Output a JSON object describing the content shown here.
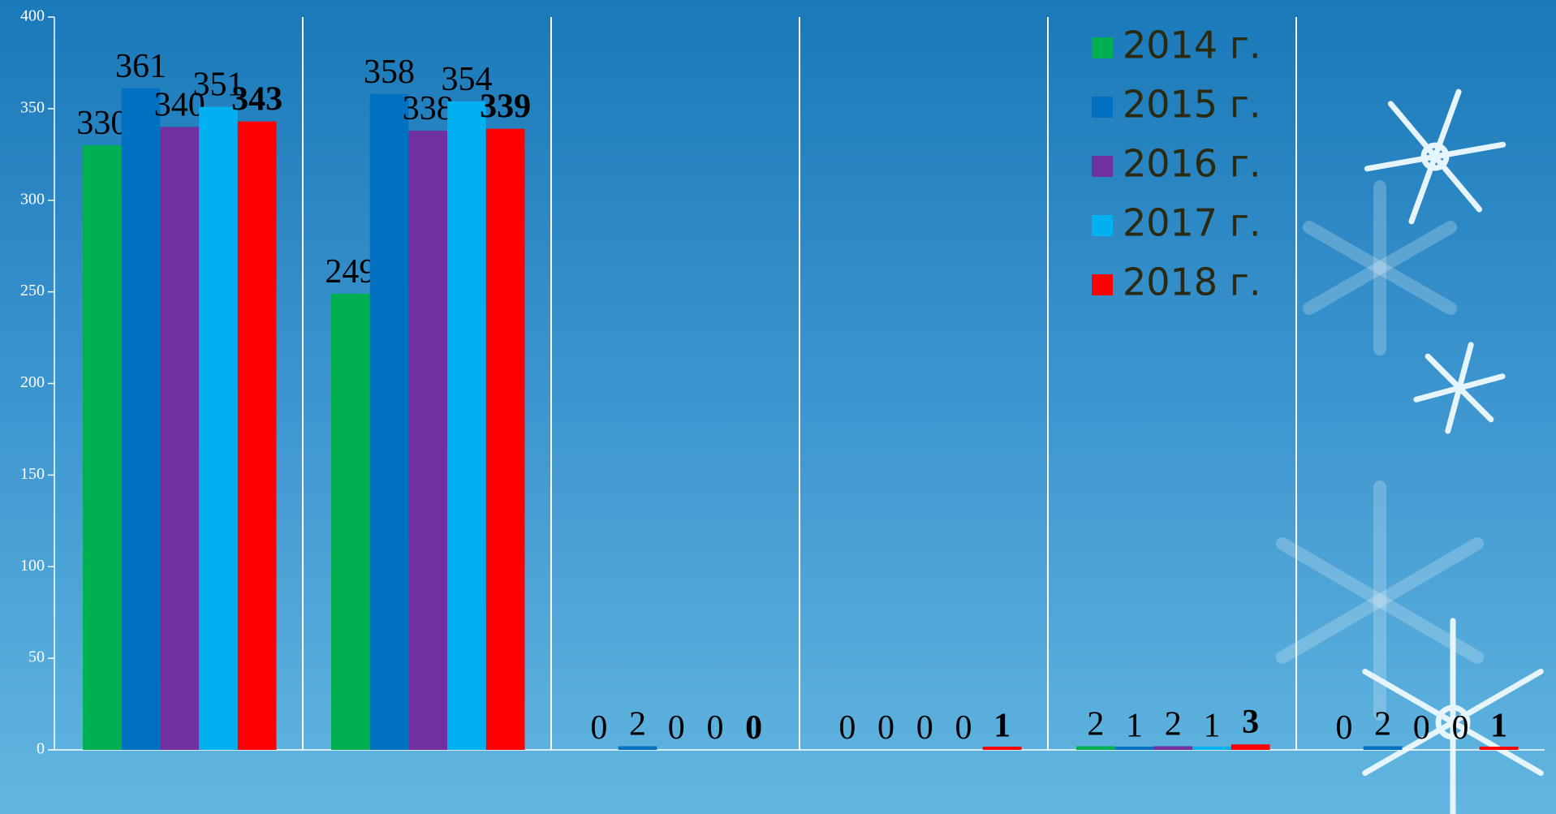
{
  "chart_data": {
    "type": "bar",
    "categories": [
      null,
      null,
      null,
      null,
      null,
      null
    ],
    "series": [
      {
        "name": "2014 г.",
        "color": "#00b050",
        "values": [
          330,
          249,
          0,
          0,
          2,
          0
        ]
      },
      {
        "name": "2015 г.",
        "color": "#0070c0",
        "values": [
          361,
          358,
          2,
          0,
          1,
          2
        ]
      },
      {
        "name": "2016 г.",
        "color": "#7030a0",
        "values": [
          340,
          338,
          0,
          0,
          2,
          0
        ]
      },
      {
        "name": "2017 г.",
        "color": "#00b0f0",
        "values": [
          351,
          354,
          0,
          0,
          1,
          0
        ]
      },
      {
        "name": "2018 г.",
        "color": "#ff0000",
        "values": [
          343,
          339,
          0,
          1,
          3,
          1
        ]
      }
    ],
    "ylim": [
      0,
      400
    ],
    "yticks": [
      0,
      50,
      100,
      150,
      200,
      250,
      300,
      350,
      400
    ],
    "legend": "top-right"
  }
}
